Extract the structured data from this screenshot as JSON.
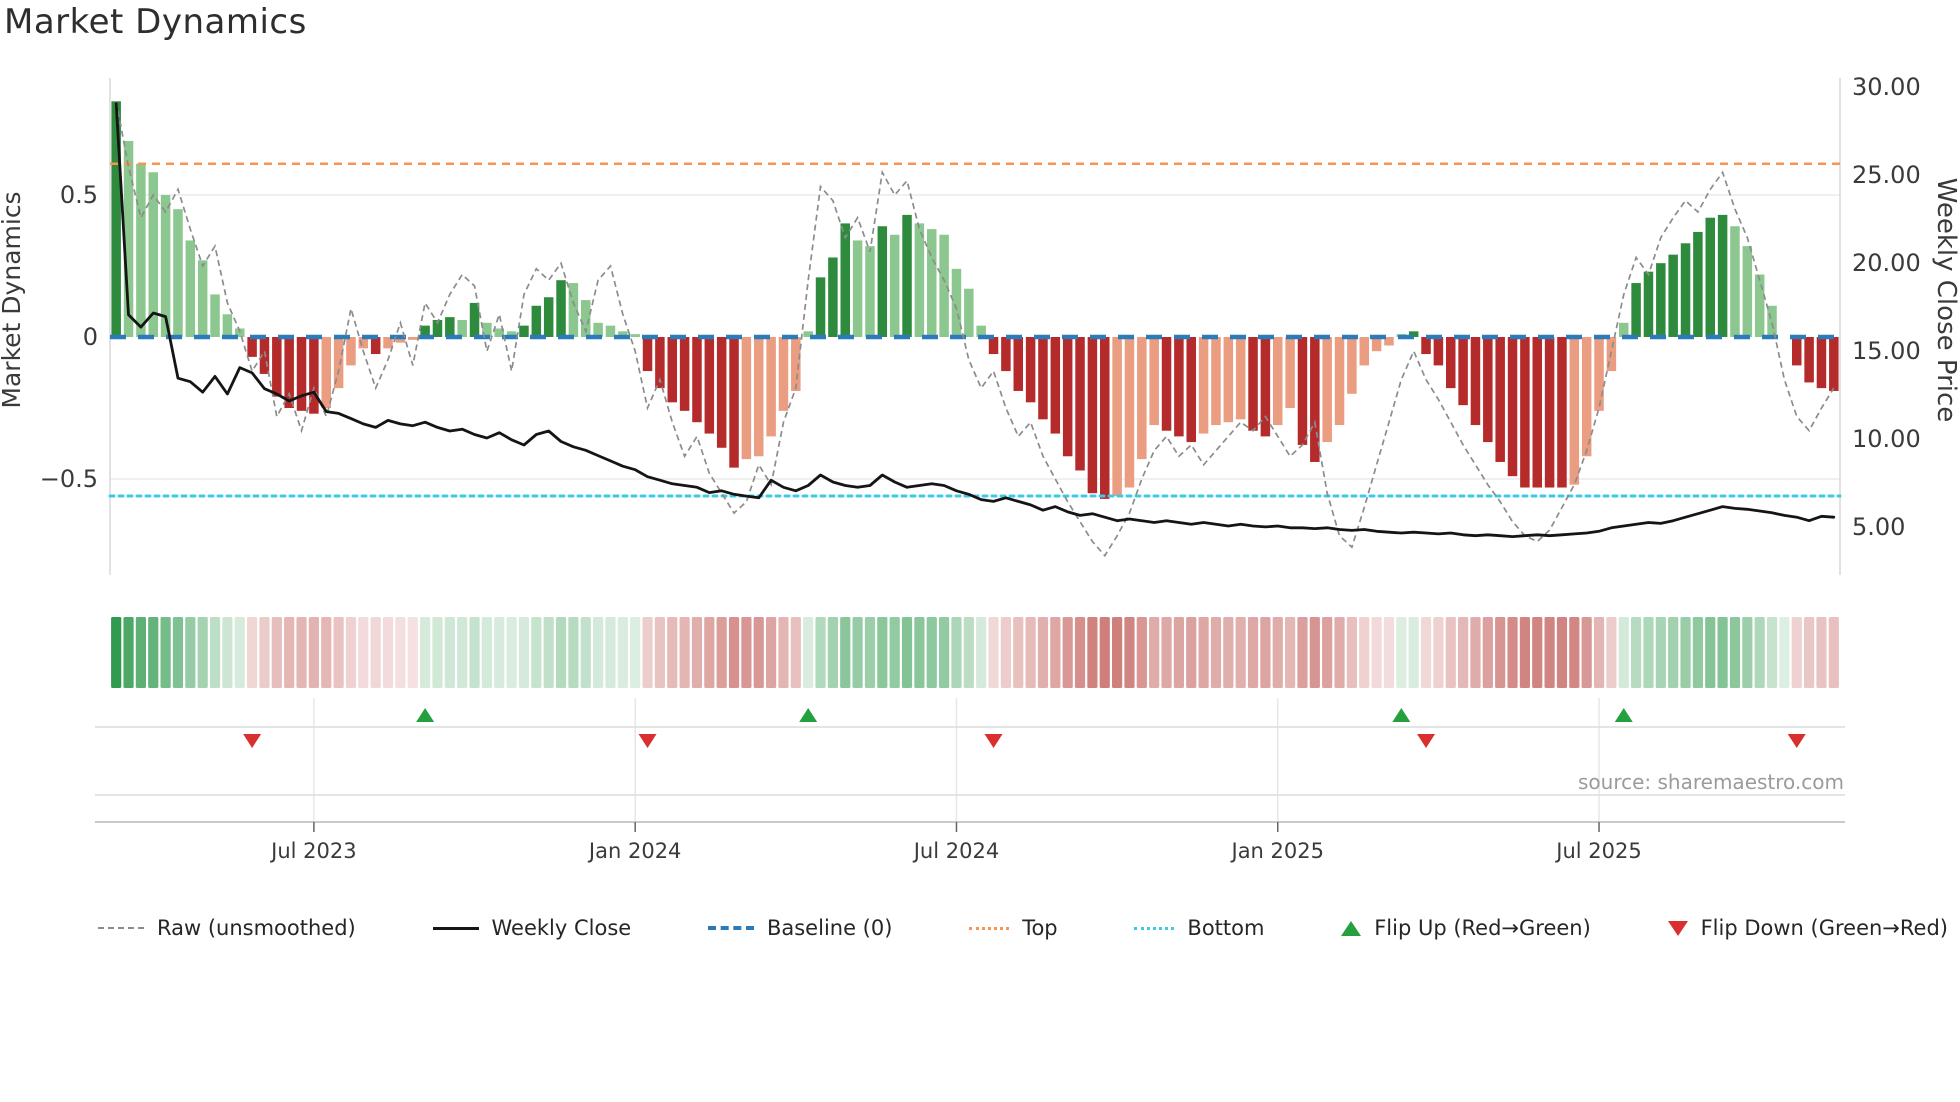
{
  "page": {
    "title": "Market Dynamics",
    "source": "source: sharemaestro.com"
  },
  "axes": {
    "left_label": "Market Dynamics",
    "right_label": "Weekly Close Price",
    "left_ticks": [
      {
        "v": 0.5,
        "label": "0.5"
      },
      {
        "v": 0,
        "label": "0"
      },
      {
        "v": -0.5,
        "label": "−0.5"
      }
    ],
    "right_ticks": [
      {
        "v": 30,
        "label": "30.00"
      },
      {
        "v": 25,
        "label": "25.00"
      },
      {
        "v": 20,
        "label": "20.00"
      },
      {
        "v": 15,
        "label": "15.00"
      },
      {
        "v": 10,
        "label": "10.00"
      },
      {
        "v": 5,
        "label": "5.00"
      }
    ],
    "x_ticks": [
      {
        "week": 16,
        "label": "Jul 2023"
      },
      {
        "week": 42,
        "label": "Jan 2024"
      },
      {
        "week": 68,
        "label": "Jul 2024"
      },
      {
        "week": 94,
        "label": "Jan 2025"
      },
      {
        "week": 120,
        "label": "Jul 2025"
      }
    ]
  },
  "legend": {
    "items": [
      {
        "key": "raw",
        "label": "Raw (unsmoothed)"
      },
      {
        "key": "close",
        "label": "Weekly Close"
      },
      {
        "key": "baseline",
        "label": "Baseline (0)"
      },
      {
        "key": "top",
        "label": "Top"
      },
      {
        "key": "bottom",
        "label": "Bottom"
      },
      {
        "key": "flip_up",
        "label": "Flip Up (Red→Green)"
      },
      {
        "key": "flip_down",
        "label": "Flip Down (Green→Red)"
      }
    ]
  },
  "colors": {
    "bar_green_dark": "#2e8b3d",
    "bar_green_light": "#8cc78f",
    "bar_red_dark": "#b52a2a",
    "bar_red_light": "#ea9d80",
    "baseline_blue": "#2b7bba",
    "top_orange": "#f79552",
    "bottom_cyan": "#3ec9e8",
    "raw_gray": "#8c8c8c",
    "close_black": "#151515",
    "flip_up_green": "#26a03f",
    "flip_down_red": "#d92f2f",
    "gridline": "#ebebeb",
    "spine": "#d8d8d8",
    "strip_line": "#dcdcdc",
    "axis_line": "#c9c9c9",
    "tick_text": "#3a3a3a",
    "heat_green_base": "#2c984a",
    "heat_red_base": "#bc4d48"
  },
  "chart_data": {
    "type": "bar",
    "subtype": "weekly momentum oscillator bars with raw/close line overlays, heatmap strip and flip markers",
    "title": "Market Dynamics",
    "xlabel": "",
    "ylabel_left": "Market Dynamics",
    "ylabel_right": "Weekly Close Price",
    "weeks": 140,
    "start_date": "2023-03-13",
    "frequency": "weekly",
    "baseline": 0,
    "top_level": 0.61,
    "bottom_level": -0.56,
    "ylim_left": [
      -0.85,
      0.9
    ],
    "right_axis_ticks": [
      5,
      10,
      15,
      20,
      25,
      30
    ],
    "x_tick_labels": [
      "Jul 2023",
      "Jan 2024",
      "Jul 2024",
      "Jan 2025",
      "Jul 2025"
    ],
    "x_tick_weeks": [
      16,
      42,
      68,
      94,
      120
    ],
    "legend_position": "bottom",
    "grid": "horizontal at ±0.5 only",
    "oscillator": [
      0.83,
      0.69,
      0.61,
      0.58,
      0.5,
      0.45,
      0.34,
      0.27,
      0.15,
      0.08,
      0.03,
      -0.07,
      -0.13,
      -0.21,
      -0.25,
      -0.26,
      -0.27,
      -0.25,
      -0.18,
      -0.1,
      -0.04,
      -0.06,
      -0.04,
      -0.02,
      -0.01,
      0.04,
      0.06,
      0.07,
      0.06,
      0.12,
      0.05,
      0.03,
      0.02,
      0.04,
      0.11,
      0.14,
      0.2,
      0.19,
      0.13,
      0.05,
      0.04,
      0.02,
      0.01,
      -0.12,
      -0.18,
      -0.23,
      -0.26,
      -0.3,
      -0.34,
      -0.39,
      -0.46,
      -0.43,
      -0.42,
      -0.35,
      -0.26,
      -0.19,
      0.02,
      0.21,
      0.28,
      0.4,
      0.34,
      0.32,
      0.39,
      0.36,
      0.43,
      0.4,
      0.38,
      0.36,
      0.24,
      0.17,
      0.04,
      -0.06,
      -0.12,
      -0.19,
      -0.23,
      -0.29,
      -0.34,
      -0.42,
      -0.47,
      -0.55,
      -0.57,
      -0.56,
      -0.53,
      -0.43,
      -0.31,
      -0.33,
      -0.35,
      -0.37,
      -0.34,
      -0.31,
      -0.3,
      -0.29,
      -0.33,
      -0.35,
      -0.31,
      -0.25,
      -0.38,
      -0.44,
      -0.37,
      -0.31,
      -0.2,
      -0.1,
      -0.05,
      -0.03,
      0.01,
      0.02,
      -0.06,
      -0.1,
      -0.18,
      -0.24,
      -0.31,
      -0.37,
      -0.44,
      -0.49,
      -0.53,
      -0.53,
      -0.53,
      -0.53,
      -0.52,
      -0.42,
      -0.26,
      -0.12,
      0.05,
      0.19,
      0.23,
      0.26,
      0.29,
      0.33,
      0.37,
      0.42,
      0.43,
      0.39,
      0.32,
      0.22,
      0.11,
      0.0,
      -0.1,
      -0.16,
      -0.18,
      -0.19
    ],
    "raw": [
      0.83,
      0.6,
      0.42,
      0.5,
      0.44,
      0.52,
      0.38,
      0.25,
      0.32,
      0.12,
      0.02,
      -0.12,
      -0.05,
      -0.28,
      -0.2,
      -0.33,
      -0.18,
      -0.28,
      -0.12,
      0.1,
      -0.05,
      -0.18,
      -0.08,
      0.05,
      -0.1,
      0.12,
      0.05,
      0.15,
      0.22,
      0.18,
      -0.05,
      0.08,
      -0.12,
      0.15,
      0.24,
      0.2,
      0.26,
      0.12,
      0.02,
      0.2,
      0.25,
      0.08,
      -0.05,
      -0.25,
      -0.15,
      -0.3,
      -0.42,
      -0.35,
      -0.48,
      -0.55,
      -0.62,
      -0.58,
      -0.45,
      -0.52,
      -0.3,
      -0.18,
      0.2,
      0.53,
      0.48,
      0.35,
      0.42,
      0.3,
      0.58,
      0.5,
      0.55,
      0.38,
      0.28,
      0.2,
      0.1,
      -0.08,
      -0.18,
      -0.12,
      -0.25,
      -0.35,
      -0.3,
      -0.42,
      -0.5,
      -0.58,
      -0.65,
      -0.72,
      -0.77,
      -0.7,
      -0.62,
      -0.5,
      -0.4,
      -0.35,
      -0.42,
      -0.38,
      -0.45,
      -0.4,
      -0.35,
      -0.3,
      -0.33,
      -0.28,
      -0.35,
      -0.42,
      -0.38,
      -0.3,
      -0.55,
      -0.7,
      -0.74,
      -0.6,
      -0.45,
      -0.3,
      -0.15,
      -0.05,
      -0.15,
      -0.22,
      -0.3,
      -0.38,
      -0.45,
      -0.52,
      -0.58,
      -0.65,
      -0.7,
      -0.72,
      -0.68,
      -0.6,
      -0.52,
      -0.4,
      -0.25,
      -0.05,
      0.15,
      0.28,
      0.22,
      0.35,
      0.42,
      0.48,
      0.44,
      0.52,
      0.58,
      0.45,
      0.35,
      0.2,
      0.05,
      -0.15,
      -0.28,
      -0.33,
      -0.25,
      -0.18
    ],
    "weekly_close": [
      29.0,
      17.0,
      16.3,
      17.1,
      16.9,
      13.4,
      13.2,
      12.6,
      13.5,
      12.5,
      14.0,
      13.7,
      12.8,
      12.5,
      12.1,
      12.4,
      12.6,
      11.5,
      11.4,
      11.1,
      10.8,
      10.6,
      11.0,
      10.8,
      10.7,
      10.9,
      10.6,
      10.4,
      10.5,
      10.2,
      10.0,
      10.3,
      9.9,
      9.6,
      10.2,
      10.4,
      9.8,
      9.5,
      9.3,
      9.0,
      8.7,
      8.4,
      8.2,
      7.8,
      7.6,
      7.4,
      7.3,
      7.2,
      6.9,
      7.0,
      6.8,
      6.7,
      6.6,
      7.6,
      7.2,
      7.0,
      7.3,
      7.9,
      7.5,
      7.3,
      7.2,
      7.3,
      7.9,
      7.5,
      7.2,
      7.3,
      7.4,
      7.3,
      7.0,
      6.8,
      6.5,
      6.4,
      6.6,
      6.4,
      6.2,
      5.9,
      6.1,
      5.8,
      5.6,
      5.7,
      5.5,
      5.3,
      5.4,
      5.3,
      5.2,
      5.3,
      5.2,
      5.1,
      5.2,
      5.1,
      5.0,
      5.1,
      5.0,
      4.95,
      5.0,
      4.9,
      4.9,
      4.85,
      4.9,
      4.8,
      4.75,
      4.8,
      4.7,
      4.65,
      4.6,
      4.65,
      4.6,
      4.55,
      4.6,
      4.5,
      4.45,
      4.5,
      4.45,
      4.4,
      4.45,
      4.5,
      4.45,
      4.5,
      4.55,
      4.6,
      4.7,
      4.9,
      5.0,
      5.1,
      5.2,
      5.15,
      5.3,
      5.5,
      5.7,
      5.9,
      6.1,
      6.0,
      5.95,
      5.85,
      5.75,
      5.6,
      5.5,
      5.3,
      5.55,
      5.5
    ],
    "flip_up_weeks": [
      25,
      56,
      104,
      122
    ],
    "flip_down_weeks": [
      11,
      43,
      71,
      106,
      136
    ],
    "heatmap": "strip below chart; one cell per week, diverging green/red intensity proportional to oscillator value"
  }
}
